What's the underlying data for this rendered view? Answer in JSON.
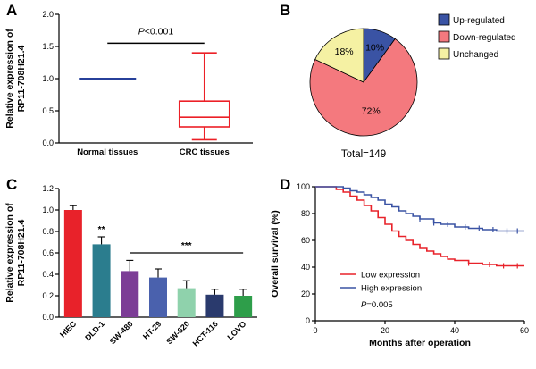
{
  "panels": {
    "a": {
      "label": "A"
    },
    "b": {
      "label": "B"
    },
    "c": {
      "label": "C"
    },
    "d": {
      "label": "D"
    }
  },
  "chart_data": [
    {
      "id": "chart-a",
      "type": "box",
      "ylabel_lines": [
        "Relative expression of",
        "RP11-708H21.4"
      ],
      "ylim": [
        0,
        2.0
      ],
      "yticks": [
        "0.0",
        "0.5",
        "1.0",
        "1.5",
        "2.0"
      ],
      "categories": [
        "Normal tissues",
        "CRC tissues"
      ],
      "series": [
        {
          "name": "Normal tissues",
          "style": "line",
          "value": 1.0,
          "color": "#27409a"
        },
        {
          "name": "CRC tissues",
          "style": "box",
          "min": 0.05,
          "q1": 0.25,
          "median": 0.4,
          "q3": 0.65,
          "max": 1.4,
          "color": "#ec2027"
        }
      ],
      "annotation": {
        "text": "P<0.001",
        "line_y": 1.55,
        "text_y": 1.73
      }
    },
    {
      "id": "chart-b",
      "type": "pie",
      "slices": [
        {
          "label": "Up-regulated",
          "value": 10,
          "color": "#3a53a4",
          "label_color": "#ffffff"
        },
        {
          "label": "Down-regulated",
          "value": 72,
          "color": "#f4797e",
          "label_color": "#000000"
        },
        {
          "label": "Unchanged",
          "value": 18,
          "color": "#f5f1a3",
          "label_color": "#000000"
        }
      ],
      "caption": "Total=149"
    },
    {
      "id": "chart-c",
      "type": "bar",
      "ylabel_lines": [
        "Relative expression of",
        "RP11-708H21.4"
      ],
      "ylim": [
        0,
        1.2
      ],
      "yticks": [
        "0.0",
        "0.2",
        "0.4",
        "0.6",
        "0.8",
        "1.0",
        "1.2"
      ],
      "categories": [
        "HIEC",
        "DLD-1",
        "SW-480",
        "HT-29",
        "SW-620",
        "HCT-116",
        "LOVO"
      ],
      "values": [
        1.0,
        0.68,
        0.43,
        0.37,
        0.27,
        0.21,
        0.2
      ],
      "errors": [
        0.04,
        0.07,
        0.1,
        0.08,
        0.07,
        0.05,
        0.06
      ],
      "colors": [
        "#e8222a",
        "#2b7d8e",
        "#7c3d96",
        "#4a61ad",
        "#8fd2ac",
        "#2a3a6d",
        "#2e9e4a"
      ],
      "sig": {
        "star_text": "**",
        "star_index": 1,
        "bracket_text": "***",
        "bracket_from": 2,
        "bracket_to": 6,
        "bracket_y": 0.6
      }
    },
    {
      "id": "chart-d",
      "type": "km",
      "xlabel": "Months after operation",
      "ylabel": "Overall survival (%)",
      "xlim": [
        0,
        60
      ],
      "ylim": [
        0,
        100
      ],
      "xticks": [
        0,
        20,
        40,
        60
      ],
      "yticks": [
        0,
        20,
        40,
        60,
        80,
        100
      ],
      "annotation": "P=0.005",
      "series": [
        {
          "name": "Low expression",
          "color": "#e8222a",
          "censors": [
            44,
            50,
            54,
            58
          ],
          "points": [
            [
              0,
              100
            ],
            [
              4,
              100
            ],
            [
              6,
              98
            ],
            [
              8,
              96
            ],
            [
              10,
              93
            ],
            [
              12,
              90
            ],
            [
              14,
              86
            ],
            [
              16,
              82
            ],
            [
              18,
              77
            ],
            [
              20,
              72
            ],
            [
              22,
              67
            ],
            [
              24,
              63
            ],
            [
              26,
              60
            ],
            [
              28,
              57
            ],
            [
              30,
              54
            ],
            [
              32,
              52
            ],
            [
              34,
              50
            ],
            [
              36,
              48
            ],
            [
              38,
              46
            ],
            [
              40,
              45
            ],
            [
              44,
              43
            ],
            [
              48,
              42
            ],
            [
              52,
              41
            ],
            [
              60,
              41
            ]
          ]
        },
        {
          "name": "High expression",
          "color": "#3a53a4",
          "censors": [
            30,
            34,
            38,
            43,
            47,
            51,
            55,
            58
          ],
          "points": [
            [
              0,
              100
            ],
            [
              6,
              100
            ],
            [
              8,
              99
            ],
            [
              10,
              97
            ],
            [
              12,
              96
            ],
            [
              14,
              94
            ],
            [
              16,
              92
            ],
            [
              18,
              90
            ],
            [
              20,
              87
            ],
            [
              22,
              85
            ],
            [
              24,
              82
            ],
            [
              26,
              80
            ],
            [
              28,
              78
            ],
            [
              30,
              76
            ],
            [
              34,
              73
            ],
            [
              36,
              72
            ],
            [
              40,
              70
            ],
            [
              44,
              69
            ],
            [
              48,
              68
            ],
            [
              52,
              67
            ],
            [
              60,
              67
            ]
          ]
        }
      ]
    }
  ]
}
